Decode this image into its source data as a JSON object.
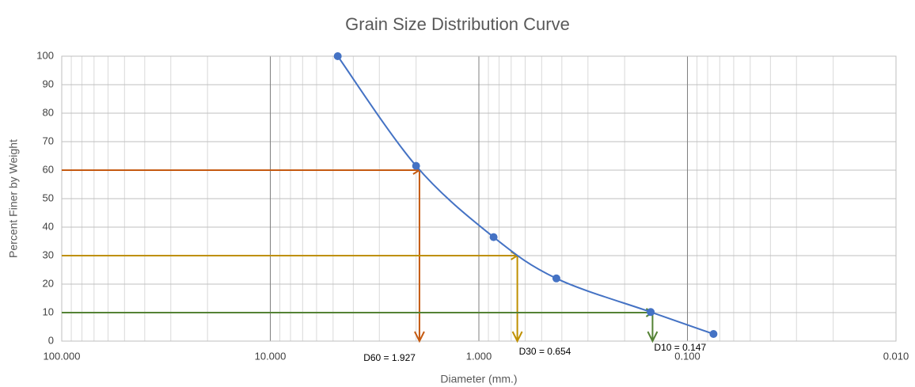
{
  "chart_data": {
    "type": "line",
    "title": "Grain Size Distribution Curve",
    "x_label": "Diameter (mm.)",
    "y_label": "Percent Finer by Weight",
    "x_scale": "log",
    "x_reversed": true,
    "xlim": [
      100,
      0.01
    ],
    "xticks": [
      {
        "value": 100,
        "label": "100.000"
      },
      {
        "value": 10,
        "label": "10.000"
      },
      {
        "value": 1,
        "label": "1.000"
      },
      {
        "value": 0.1,
        "label": "0.100"
      },
      {
        "value": 0.01,
        "label": "0.010"
      }
    ],
    "ylim": [
      0,
      100
    ],
    "yticks": [
      0,
      10,
      20,
      30,
      40,
      50,
      60,
      70,
      80,
      90,
      100
    ],
    "grid": true,
    "series": [
      {
        "color": "#4472c4",
        "x": [
          4.75,
          2.0,
          0.85,
          0.425,
          0.15,
          0.075
        ],
        "values": [
          100,
          61.5,
          36.5,
          22,
          10.2,
          2.5
        ]
      }
    ],
    "annotations": [
      {
        "label": "D60 = 1.927",
        "x": 1.927,
        "y": 60,
        "color": "#c55a11"
      },
      {
        "label": "D30 = 0.654",
        "x": 0.654,
        "y": 30,
        "color": "#bf9000"
      },
      {
        "label": "D10 = 0.147",
        "x": 0.147,
        "y": 10,
        "color": "#548235"
      }
    ]
  }
}
